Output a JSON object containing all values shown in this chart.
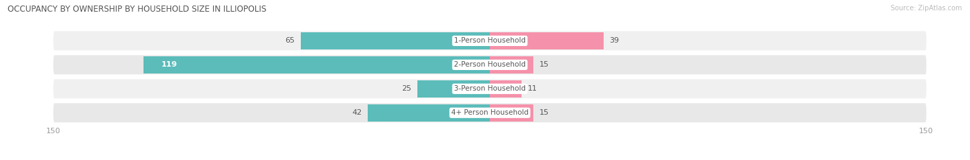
{
  "title": "OCCUPANCY BY OWNERSHIP BY HOUSEHOLD SIZE IN ILLIOPOLIS",
  "source": "Source: ZipAtlas.com",
  "categories": [
    "1-Person Household",
    "2-Person Household",
    "3-Person Household",
    "4+ Person Household"
  ],
  "owner_values": [
    65,
    119,
    25,
    42
  ],
  "renter_values": [
    39,
    15,
    11,
    15
  ],
  "owner_color": "#5bbcba",
  "renter_color": "#f591aa",
  "row_bg_color_odd": "#f0f0f0",
  "row_bg_color_even": "#e8e8e8",
  "max_value": 150,
  "axis_label_left": "150",
  "axis_label_right": "150",
  "title_fontsize": 8.5,
  "bar_label_fontsize": 8,
  "category_fontsize": 7.5,
  "axis_fontsize": 8,
  "legend_fontsize": 8,
  "source_fontsize": 7
}
